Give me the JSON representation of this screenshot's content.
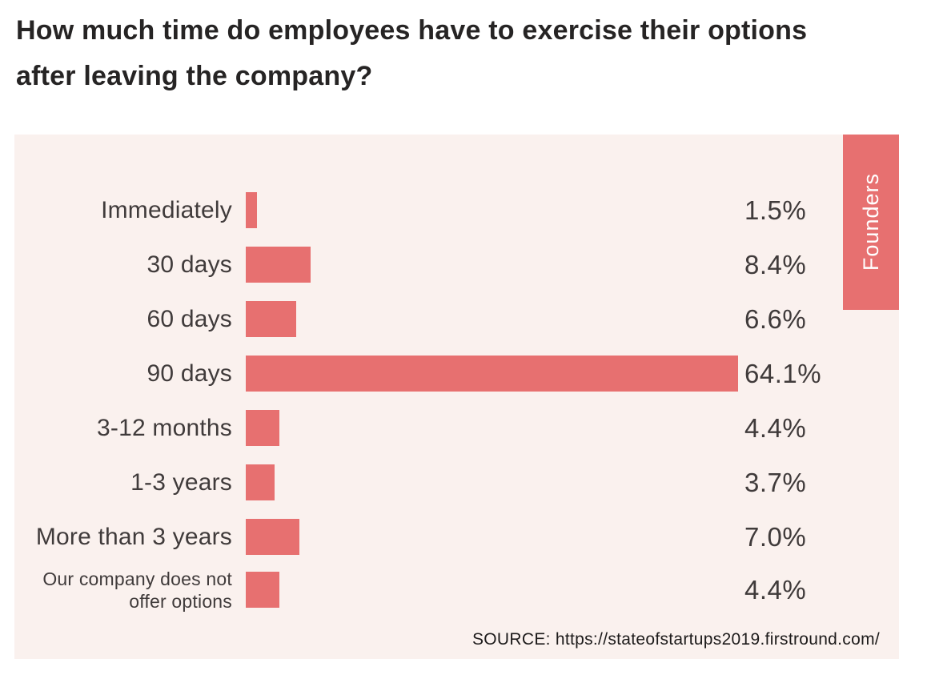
{
  "page": {
    "title_lines": [
      "How much time do employees have to exercise their options",
      "after leaving the company?"
    ]
  },
  "panel": {
    "tab_label": "Founders",
    "source_text": "SOURCE: https://stateofstartups2019.firstround.com/"
  },
  "chart_data": {
    "type": "bar",
    "orientation": "horizontal",
    "title": "How much time do employees have to exercise their options after leaving the company?",
    "categories": [
      "Immediately",
      "30 days",
      "60 days",
      "90 days",
      "3-12 months",
      "1-3 years",
      "More than 3 years",
      "Our company does not offer options"
    ],
    "values": [
      1.5,
      8.4,
      6.6,
      64.1,
      4.4,
      3.7,
      7.0,
      4.4
    ],
    "value_labels": [
      "1.5%",
      "8.4%",
      "6.6%",
      "64.1%",
      "4.4%",
      "3.7%",
      "7.0%",
      "4.4%"
    ],
    "series": [
      {
        "name": "Founders",
        "values": [
          1.5,
          8.4,
          6.6,
          64.1,
          4.4,
          3.7,
          7.0,
          4.4
        ]
      }
    ],
    "xlim": [
      0,
      67
    ],
    "grid": false,
    "legend_position": "top-right-vertical-tab",
    "source": "SOURCE: https://stateofstartups2019.firstround.com/",
    "colors": {
      "bar": "#e77070",
      "panel_background": "#faf1ee",
      "page_background": "#ffffff",
      "tab_text": "#ffffff",
      "label_text": "#403b3b",
      "title_text": "#262424"
    }
  }
}
